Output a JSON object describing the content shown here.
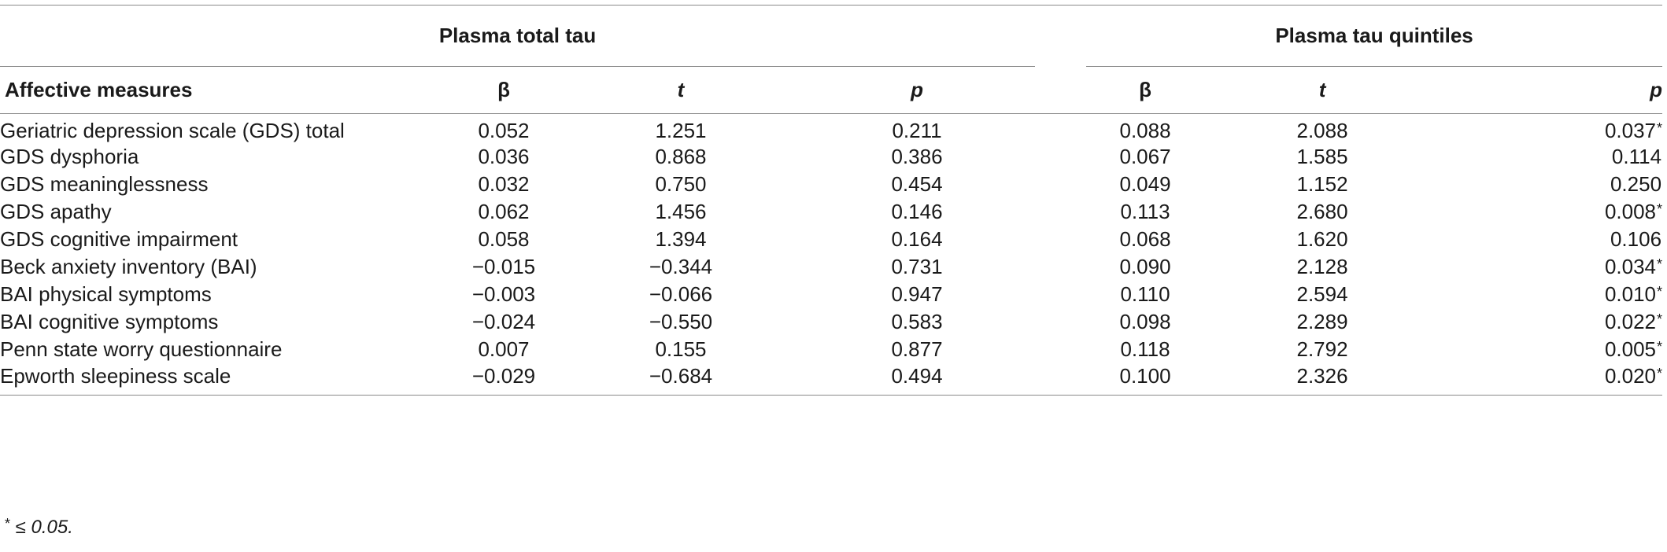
{
  "table": {
    "group_left": "Plasma total tau",
    "group_right": "Plasma tau quintiles",
    "label_header": "Affective measures",
    "col_beta": "β",
    "col_t": "t",
    "col_p": "p",
    "rows": [
      {
        "label": "Geriatric depression scale (GDS) total",
        "b1": "0.052",
        "t1": "1.251",
        "p1": "0.211",
        "b2": "0.088",
        "t2": "2.088",
        "p2": "0.037",
        "sig2": "*"
      },
      {
        "label": "GDS dysphoria",
        "b1": "0.036",
        "t1": "0.868",
        "p1": "0.386",
        "b2": "0.067",
        "t2": "1.585",
        "p2": "0.114",
        "sig2": ""
      },
      {
        "label": "GDS meaninglessness",
        "b1": "0.032",
        "t1": "0.750",
        "p1": "0.454",
        "b2": "0.049",
        "t2": "1.152",
        "p2": "0.250",
        "sig2": ""
      },
      {
        "label": "GDS apathy",
        "b1": "0.062",
        "t1": "1.456",
        "p1": "0.146",
        "b2": "0.113",
        "t2": "2.680",
        "p2": "0.008",
        "sig2": "*"
      },
      {
        "label": "GDS cognitive impairment",
        "b1": "0.058",
        "t1": "1.394",
        "p1": "0.164",
        "b2": "0.068",
        "t2": "1.620",
        "p2": "0.106",
        "sig2": ""
      },
      {
        "label": "Beck anxiety inventory (BAI)",
        "b1": "−0.015",
        "t1": "−0.344",
        "p1": "0.731",
        "b2": "0.090",
        "t2": "2.128",
        "p2": "0.034",
        "sig2": "*"
      },
      {
        "label": "BAI physical symptoms",
        "b1": "−0.003",
        "t1": "−0.066",
        "p1": "0.947",
        "b2": "0.110",
        "t2": "2.594",
        "p2": "0.010",
        "sig2": "*"
      },
      {
        "label": "BAI cognitive symptoms",
        "b1": "−0.024",
        "t1": "−0.550",
        "p1": "0.583",
        "b2": "0.098",
        "t2": "2.289",
        "p2": "0.022",
        "sig2": "*"
      },
      {
        "label": "Penn state worry questionnaire",
        "b1": "0.007",
        "t1": "0.155",
        "p1": "0.877",
        "b2": "0.118",
        "t2": "2.792",
        "p2": "0.005",
        "sig2": "*"
      },
      {
        "label": "Epworth sleepiness scale",
        "b1": "−0.029",
        "t1": "−0.684",
        "p1": "0.494",
        "b2": "0.100",
        "t2": "2.326",
        "p2": "0.020",
        "sig2": "*"
      }
    ]
  },
  "footnote": {
    "star": "*",
    "text": " ≤ 0.05."
  }
}
